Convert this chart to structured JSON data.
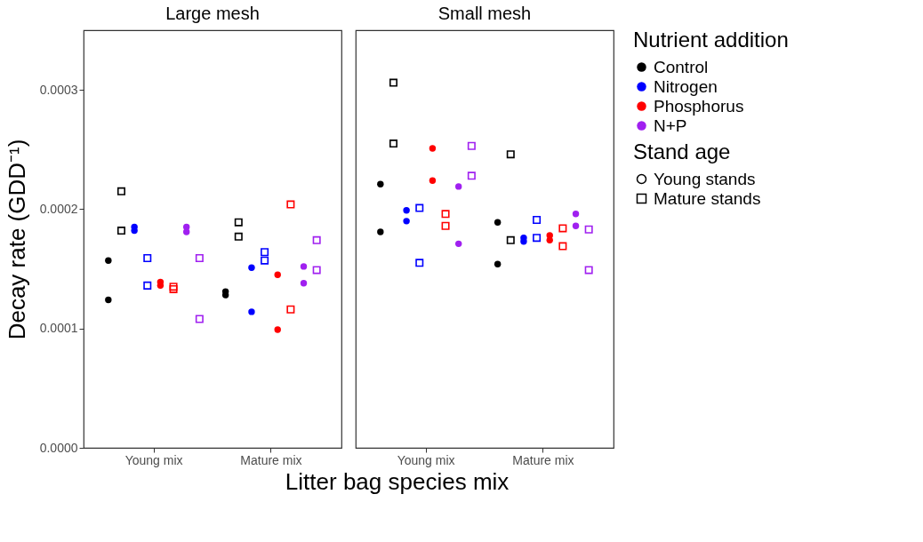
{
  "chart_data": [
    {
      "type": "scatter",
      "title": "Large mesh",
      "ylabel": "Decay rate (GDD⁻¹)",
      "xlabel": "Litter bag species mix",
      "categories": [
        "Young mix",
        "Mature mix"
      ],
      "ylim": [
        0,
        0.00035
      ],
      "yticks": [
        {
          "value": 0,
          "label": "0.0000"
        },
        {
          "value": 0.0001,
          "label": "0.0001"
        },
        {
          "value": 0.0002,
          "label": "0.0002"
        },
        {
          "value": 0.0003,
          "label": "0.0003"
        }
      ],
      "grid": false,
      "series": [
        {
          "color": "#000000",
          "marker": "circle",
          "x": [
            "Young mix",
            "Young mix",
            "Mature mix",
            "Mature mix"
          ],
          "values": [
            0.000157,
            0.000124,
            0.000131,
            0.000128
          ]
        },
        {
          "color": "#000000",
          "marker": "square",
          "x": [
            "Young mix",
            "Young mix",
            "Mature mix",
            "Mature mix"
          ],
          "values": [
            0.000215,
            0.000182,
            0.000189,
            0.000177
          ]
        },
        {
          "color": "#0000ff",
          "marker": "circle",
          "x": [
            "Young mix",
            "Young mix",
            "Mature mix",
            "Mature mix"
          ],
          "values": [
            0.000185,
            0.000182,
            0.000151,
            0.000114
          ]
        },
        {
          "color": "#0000ff",
          "marker": "square",
          "x": [
            "Young mix",
            "Young mix",
            "Mature mix",
            "Mature mix"
          ],
          "values": [
            0.000159,
            0.000136,
            0.000164,
            0.000157
          ]
        },
        {
          "color": "#ff0000",
          "marker": "circle",
          "x": [
            "Young mix",
            "Young mix",
            "Mature mix",
            "Mature mix"
          ],
          "values": [
            0.000139,
            0.000136,
            0.000145,
            9.9e-05
          ]
        },
        {
          "color": "#ff0000",
          "marker": "square",
          "x": [
            "Young mix",
            "Young mix",
            "Mature mix",
            "Mature mix"
          ],
          "values": [
            0.000135,
            0.000133,
            0.000204,
            0.000116
          ]
        },
        {
          "color": "#a020f0",
          "marker": "circle",
          "x": [
            "Young mix",
            "Young mix",
            "Mature mix",
            "Mature mix"
          ],
          "values": [
            0.000185,
            0.000181,
            0.000152,
            0.000138
          ]
        },
        {
          "color": "#a020f0",
          "marker": "square",
          "x": [
            "Young mix",
            "Young mix",
            "Mature mix",
            "Mature mix"
          ],
          "values": [
            0.000159,
            0.000108,
            0.000174,
            0.000149
          ]
        }
      ]
    },
    {
      "type": "scatter",
      "title": "Small mesh",
      "categories": [
        "Young mix",
        "Mature mix"
      ],
      "ylim": [
        0,
        0.00035
      ],
      "tick_labels": "x",
      "grid": false,
      "legend": "right",
      "legend_title": "Nutrient addition",
      "annotations": [
        "Stand age",
        "Young stands",
        "Mature stands"
      ],
      "series": [
        {
          "name": "Control",
          "color": "#000000",
          "marker": "circle",
          "x": [
            "Young mix",
            "Young mix",
            "Mature mix",
            "Mature mix"
          ],
          "values": [
            0.000221,
            0.000181,
            0.000189,
            0.000154
          ]
        },
        {
          "color": "#000000",
          "marker": "square",
          "x": [
            "Young mix",
            "Young mix",
            "Mature mix",
            "Mature mix"
          ],
          "values": [
            0.000306,
            0.000255,
            0.000246,
            0.000174
          ]
        },
        {
          "name": "Nitrogen",
          "color": "#0000ff",
          "marker": "circle",
          "x": [
            "Young mix",
            "Young mix",
            "Mature mix",
            "Mature mix"
          ],
          "values": [
            0.000199,
            0.00019,
            0.000176,
            0.000173
          ]
        },
        {
          "color": "#0000ff",
          "marker": "square",
          "x": [
            "Young mix",
            "Young mix",
            "Mature mix",
            "Mature mix"
          ],
          "values": [
            0.000201,
            0.000155,
            0.000191,
            0.000176
          ]
        },
        {
          "name": "Phosphorus",
          "color": "#ff0000",
          "marker": "circle",
          "x": [
            "Young mix",
            "Young mix",
            "Mature mix",
            "Mature mix"
          ],
          "values": [
            0.000251,
            0.000224,
            0.000178,
            0.000174
          ]
        },
        {
          "color": "#ff0000",
          "marker": "square",
          "x": [
            "Young mix",
            "Young mix",
            "Mature mix",
            "Mature mix"
          ],
          "values": [
            0.000196,
            0.000186,
            0.000184,
            0.000169
          ]
        },
        {
          "name": "N+P",
          "color": "#a020f0",
          "marker": "circle",
          "x": [
            "Young mix",
            "Young mix",
            "Mature mix",
            "Mature mix"
          ],
          "values": [
            0.000219,
            0.000171,
            0.000196,
            0.000186
          ]
        },
        {
          "color": "#a020f0",
          "marker": "square",
          "x": [
            "Young mix",
            "Young mix",
            "Mature mix",
            "Mature mix"
          ],
          "values": [
            0.000253,
            0.000228,
            0.000183,
            0.000149
          ]
        }
      ]
    }
  ]
}
